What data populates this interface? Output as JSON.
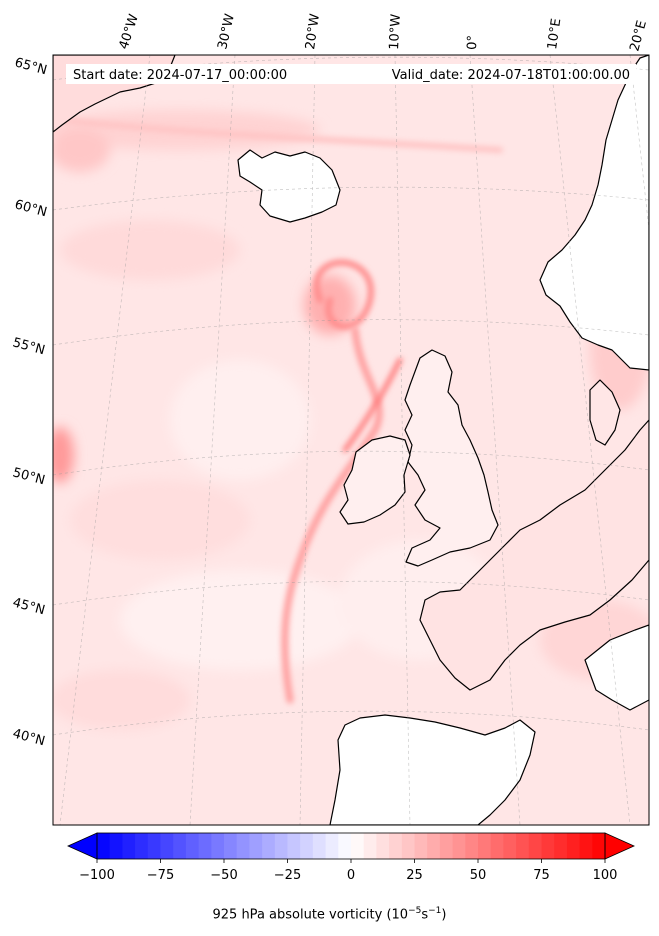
{
  "header": {
    "start_date": "Start date: 2024-07-17_00:00:00",
    "valid_date": "Valid_date: 2024-07-18T01:00:00.00"
  },
  "longitude_labels": [
    "40°W",
    "30°W",
    "20°W",
    "10°W",
    "0°",
    "10°E",
    "20°E"
  ],
  "latitude_labels": [
    "65°N",
    "60°N",
    "55°N",
    "50°N",
    "45°N",
    "40°N"
  ],
  "colorbar": {
    "ticks": [
      "−100",
      "−75",
      "−50",
      "−25",
      "0",
      "25",
      "50",
      "75",
      "100"
    ],
    "min": -100,
    "max": 100,
    "levels": 40,
    "low_color": "#0000ff",
    "mid_color": "#ffffff",
    "high_color": "#ff0000",
    "label_main": "925 hPa absolute vorticity (10",
    "label_exp1": "−5",
    "label_mid": "s",
    "label_exp2": "−1",
    "label_end": ")"
  },
  "map": {
    "background_color": "#ffe9e9",
    "coastline_color": "#000000"
  }
}
